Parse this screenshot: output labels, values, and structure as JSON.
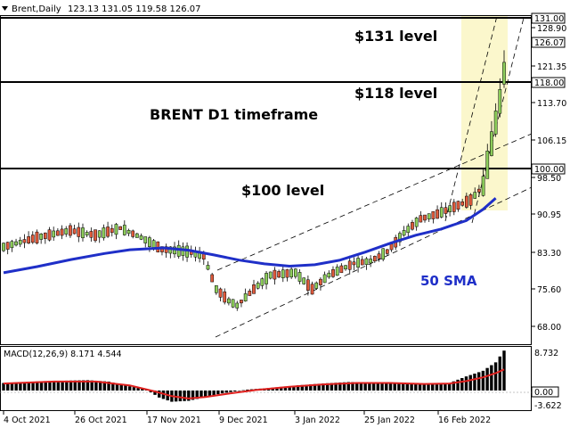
{
  "header": {
    "symbol": "Brent,Daily",
    "ohlc": "123.13 131.05 119.58 126.07"
  },
  "annotations": {
    "level131": "$131 level",
    "level118": "$118 level",
    "level100": "$100 level",
    "timeframe": "BRENT D1 timeframe",
    "sma": "50 SMA"
  },
  "price_tags": {
    "level131": "131.00",
    "current": "126.07",
    "level118": "118.00",
    "level100": "100.00"
  },
  "macd": {
    "label": "MACD(12,26,9) 8.171 4.544",
    "tick_top": "8.732",
    "tick_zero": "0.00",
    "tick_bottom": "-3.622"
  },
  "colors": {
    "bull": "#8ccd5a",
    "bear": "#e05a3c",
    "sma": "#1f2fc8",
    "signal": "#e0201e",
    "histogram": "#000000",
    "highlight": "#fbf7cc",
    "sma_label": "#1f2fc8"
  },
  "chart_data": {
    "type": "candlestick",
    "y_ticks": [
      "128.90",
      "121.35",
      "113.70",
      "106.15",
      "98.50",
      "90.95",
      "83.30",
      "75.60",
      "68.00"
    ],
    "x_ticks": [
      "4 Oct 2021",
      "26 Oct 2021",
      "17 Nov 2021",
      "9 Dec 2021",
      "3 Jan 2022",
      "25 Jan 2022",
      "16 Feb 2022"
    ],
    "ylim": [
      64.7,
      132.7
    ],
    "horizontal_levels": [
      131.0,
      118.0,
      100.0
    ],
    "candles_count": 120,
    "sma50_path": [
      [
        0,
        76.5
      ],
      [
        8,
        77.8
      ],
      [
        16,
        79.3
      ],
      [
        24,
        80.6
      ],
      [
        30,
        81.4
      ],
      [
        38,
        81.8
      ],
      [
        44,
        81.3
      ],
      [
        50,
        80.3
      ],
      [
        56,
        79.2
      ],
      [
        62,
        78.4
      ],
      [
        68,
        77.9
      ],
      [
        74,
        78.2
      ],
      [
        80,
        79.2
      ],
      [
        86,
        80.9
      ],
      [
        92,
        82.8
      ],
      [
        98,
        84.5
      ],
      [
        104,
        85.8
      ],
      [
        110,
        87.6
      ],
      [
        114,
        90.0
      ],
      [
        117,
        92.4
      ]
    ],
    "macd_histogram_path": [
      [
        0,
        1.6
      ],
      [
        10,
        2.0
      ],
      [
        20,
        2.2
      ],
      [
        25,
        1.9
      ],
      [
        30,
        0.9
      ],
      [
        34,
        0.2
      ],
      [
        37,
        -1.5
      ],
      [
        40,
        -2.4
      ],
      [
        44,
        -2.2
      ],
      [
        48,
        -1.4
      ],
      [
        52,
        -0.6
      ],
      [
        58,
        0.2
      ],
      [
        64,
        0.6
      ],
      [
        70,
        1.1
      ],
      [
        76,
        1.5
      ],
      [
        82,
        1.8
      ],
      [
        88,
        1.7
      ],
      [
        94,
        1.6
      ],
      [
        98,
        1.4
      ],
      [
        103,
        1.3
      ],
      [
        106,
        1.6
      ],
      [
        110,
        3.0
      ],
      [
        114,
        4.2
      ],
      [
        117,
        6.0
      ],
      [
        119,
        8.5
      ]
    ],
    "macd_signal_path": [
      [
        0,
        1.5
      ],
      [
        12,
        1.9
      ],
      [
        22,
        1.9
      ],
      [
        30,
        1.1
      ],
      [
        36,
        -0.2
      ],
      [
        40,
        -1.2
      ],
      [
        44,
        -1.7
      ],
      [
        48,
        -1.4
      ],
      [
        54,
        -0.6
      ],
      [
        60,
        0.1
      ],
      [
        68,
        0.8
      ],
      [
        76,
        1.3
      ],
      [
        84,
        1.6
      ],
      [
        92,
        1.6
      ],
      [
        100,
        1.4
      ],
      [
        106,
        1.5
      ],
      [
        110,
        2.0
      ],
      [
        114,
        2.8
      ],
      [
        117,
        3.7
      ],
      [
        119,
        4.5
      ]
    ],
    "macd_ylim": [
      -3.622,
      8.732
    ]
  }
}
